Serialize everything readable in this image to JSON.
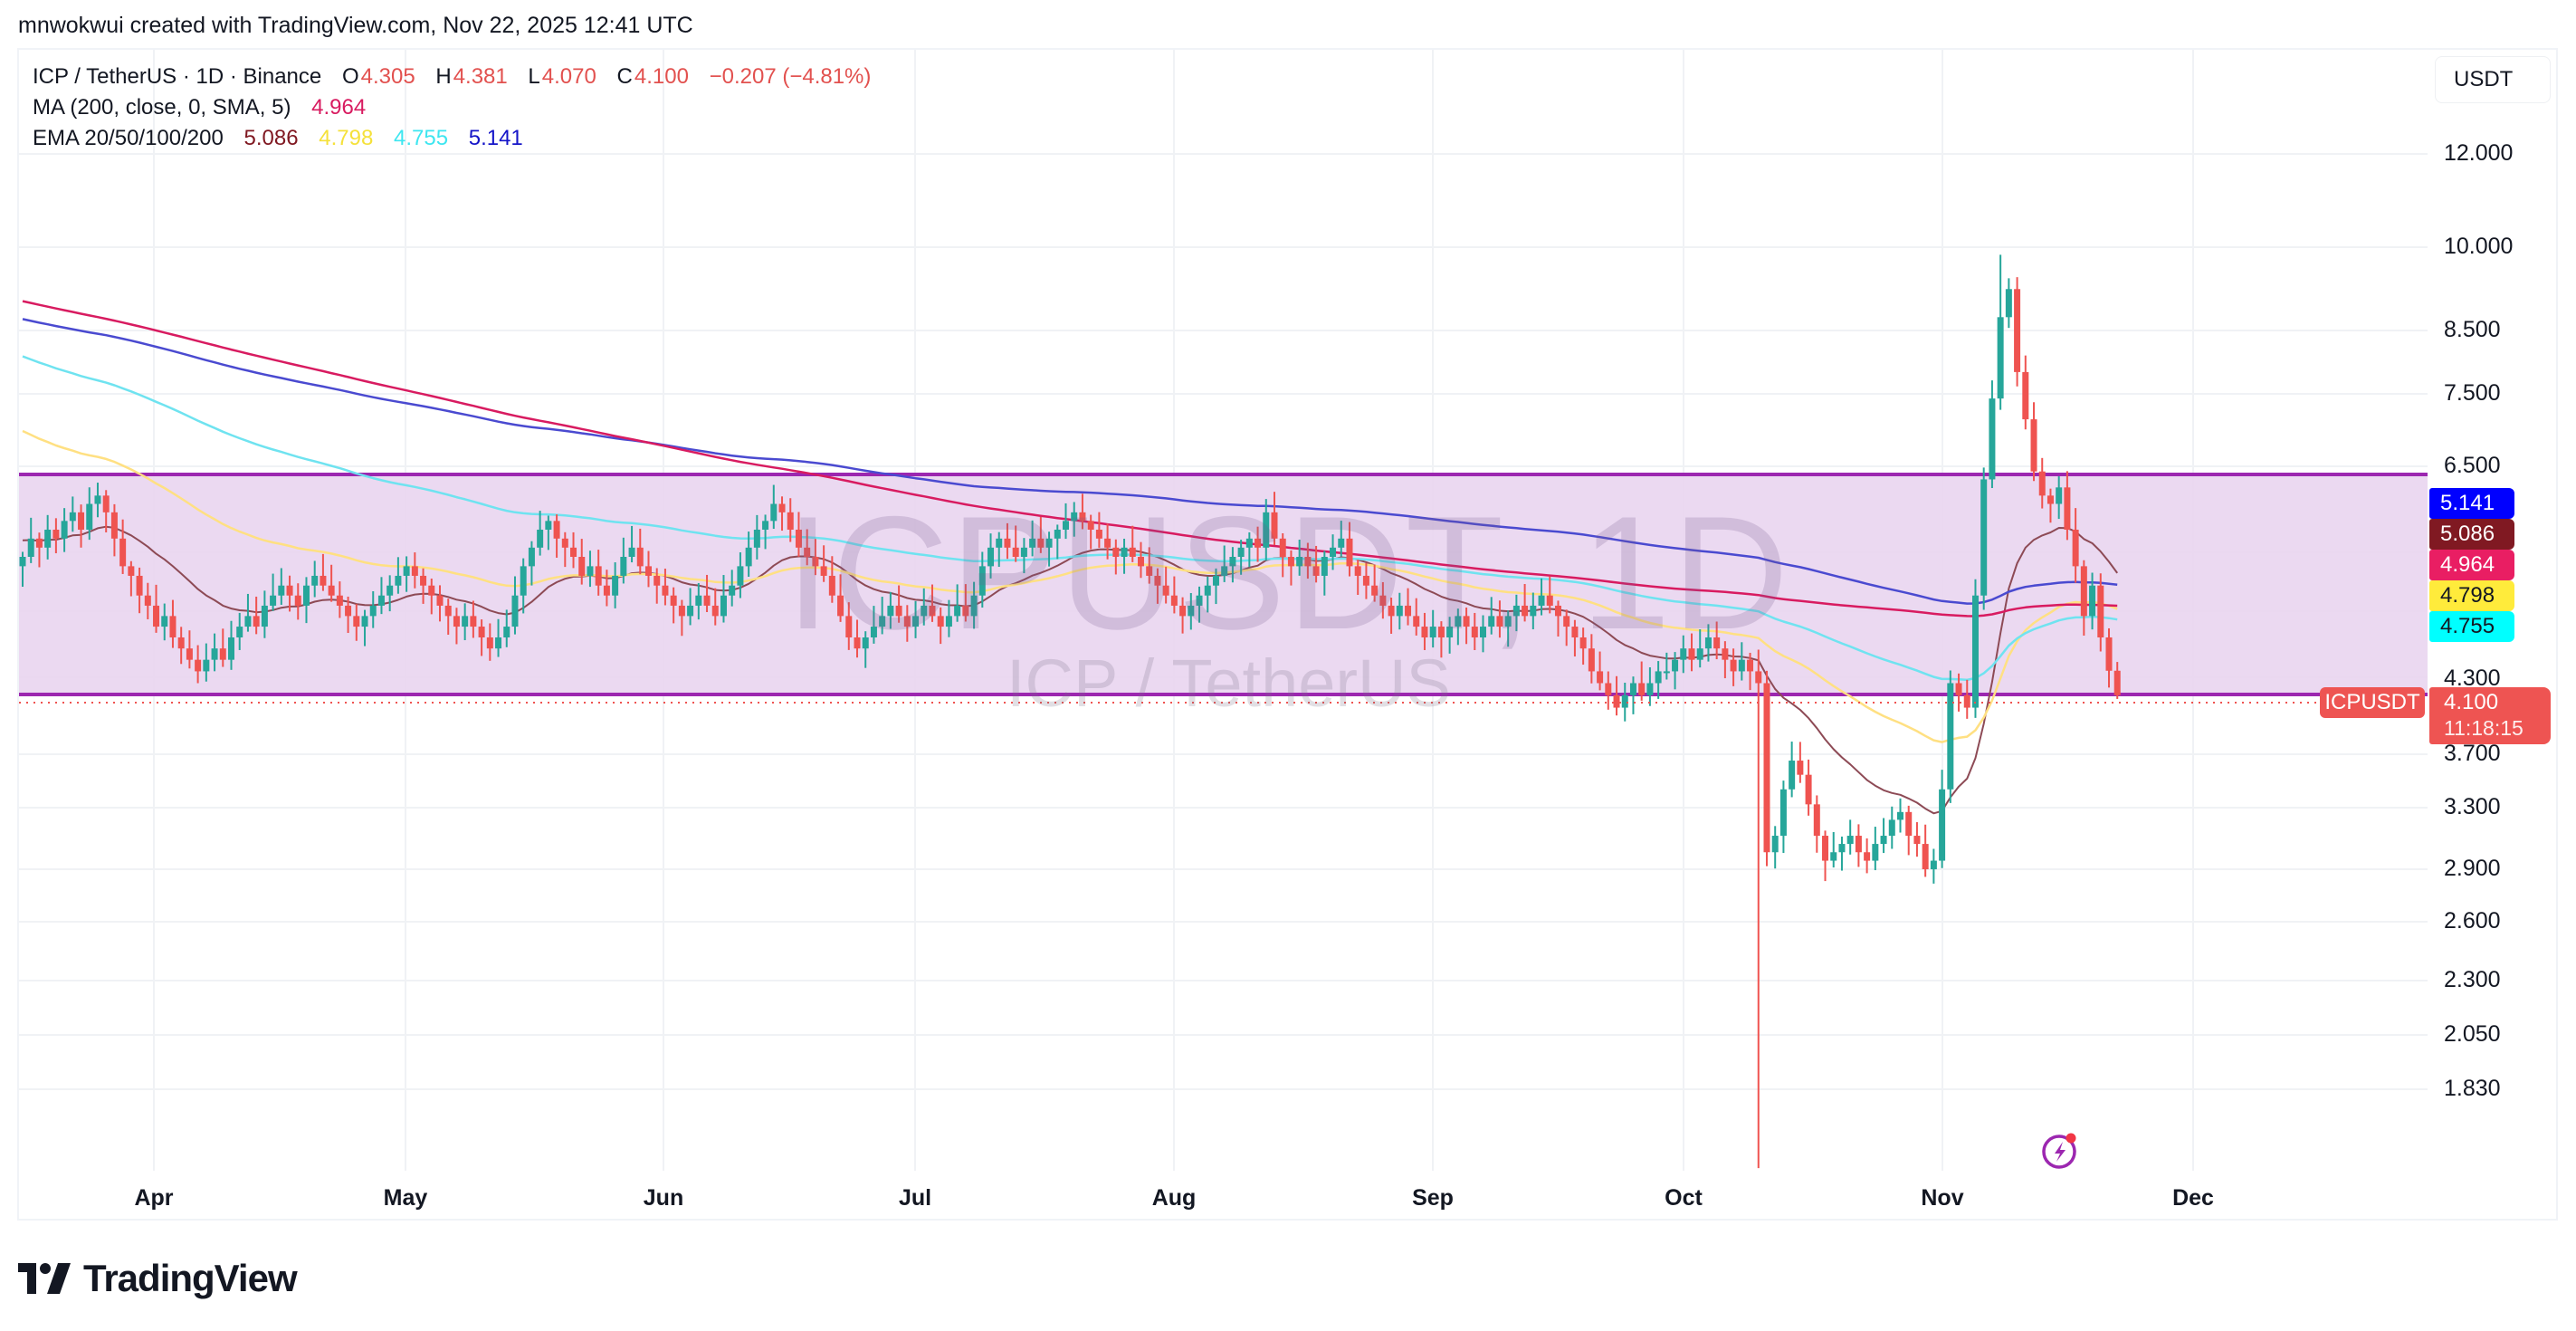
{
  "header": {
    "credit": "mnwokwui created with TradingView.com, Nov 22, 2025 12:41 UTC"
  },
  "legend": {
    "symbol_line": "ICP / TetherUS · 1D · Binance",
    "o_key": "O",
    "o_val": "4.305",
    "h_key": "H",
    "h_val": "4.381",
    "l_key": "L",
    "l_val": "4.070",
    "c_key": "C",
    "c_val": "4.100",
    "change": "−0.207 (−4.81%)",
    "ma_label": "MA (200, close, 0, SMA, 5)",
    "ma_val": "4.964",
    "ema_label": "EMA 20/50/100/200",
    "ema20_val": "5.086",
    "ema50_val": "4.798",
    "ema100_val": "4.755",
    "ema200_val": "5.141"
  },
  "currency_button": "USDT",
  "watermark": {
    "main": "ICPUSDT, 1D",
    "sub": "ICP / TetherUS"
  },
  "price_axis": {
    "ticks": [
      "12.000",
      "10.000",
      "8.500",
      "7.500",
      "6.500",
      "4.300",
      "3.700",
      "3.300",
      "2.900",
      "2.600",
      "2.300",
      "2.050",
      "1.830"
    ]
  },
  "price_tags": [
    {
      "label": "5.141",
      "bg": "#0000ff",
      "fg": "#ffffff",
      "name": "ema200-price-tag"
    },
    {
      "label": "5.086",
      "bg": "#801922",
      "fg": "#ffffff",
      "name": "ema20-price-tag"
    },
    {
      "label": "4.964",
      "bg": "#e91e63",
      "fg": "#ffffff",
      "name": "ma200-price-tag"
    },
    {
      "label": "4.798",
      "bg": "#ffeb3b",
      "fg": "#131722",
      "name": "ema50-price-tag"
    },
    {
      "label": "4.755",
      "bg": "#00ffff",
      "fg": "#131722",
      "name": "ema100-price-tag"
    }
  ],
  "last_price": {
    "symbol": "ICPUSDT",
    "price": "4.100",
    "countdown": "11:18:15"
  },
  "time_axis": {
    "labels": [
      "Apr",
      "May",
      "Jun",
      "Jul",
      "Aug",
      "Sep",
      "Oct",
      "Nov",
      "Dec"
    ]
  },
  "brand": {
    "name": "TradingView"
  },
  "colors": {
    "up": "#26a69a",
    "down": "#ef5350",
    "ema20": "#8d4a55",
    "ema50": "#ffe082",
    "ema100": "#6fe3f0",
    "ema200": "#4a4ad0",
    "ma200": "#d81b60",
    "range_fill": "#e9d5ef",
    "range_border": "#9c27b0"
  },
  "chart_data": {
    "type": "candlestick",
    "title": "ICP / TetherUS · 1D · Binance",
    "xlabel": "",
    "ylabel": "USDT",
    "y_scale": "log",
    "ylim": [
      1.6,
      13.5
    ],
    "start_date": "2025-03-16",
    "end_date": "2025-11-22",
    "x_ticks": [
      "Apr",
      "May",
      "Jun",
      "Jul",
      "Aug",
      "Sep",
      "Oct",
      "Nov",
      "Dec"
    ],
    "y_ticks": [
      12.0,
      10.0,
      8.5,
      7.5,
      6.5,
      4.3,
      3.7,
      3.3,
      2.9,
      2.6,
      2.3,
      2.05,
      1.83
    ],
    "last_bar": {
      "open": 4.305,
      "high": 4.381,
      "low": 4.07,
      "close": 4.1,
      "change": -0.207,
      "change_pct": -4.81
    },
    "indicators": {
      "MA200_SMA": 4.964,
      "EMA20": 5.086,
      "EMA50": 4.798,
      "EMA100": 4.755,
      "EMA200": 5.141
    },
    "range_box": {
      "top": 6.45,
      "bottom": 4.16,
      "color": "#9c27b0"
    },
    "closes": [
      5.4,
      5.6,
      5.5,
      5.7,
      5.6,
      5.8,
      5.9,
      5.7,
      6.0,
      6.1,
      5.9,
      5.6,
      5.3,
      5.2,
      5.0,
      4.9,
      4.7,
      4.8,
      4.6,
      4.5,
      4.4,
      4.3,
      4.4,
      4.5,
      4.4,
      4.6,
      4.7,
      4.8,
      4.7,
      4.9,
      5.0,
      5.1,
      5.0,
      4.9,
      5.1,
      5.2,
      5.1,
      5.0,
      4.9,
      4.8,
      4.7,
      4.8,
      4.9,
      5.0,
      5.1,
      5.2,
      5.3,
      5.2,
      5.1,
      5.0,
      4.9,
      4.8,
      4.7,
      4.8,
      4.7,
      4.6,
      4.5,
      4.6,
      4.7,
      5.0,
      5.3,
      5.5,
      5.7,
      5.8,
      5.6,
      5.5,
      5.4,
      5.2,
      5.3,
      5.1,
      5.0,
      5.2,
      5.4,
      5.5,
      5.3,
      5.2,
      5.1,
      5.0,
      4.9,
      4.8,
      4.9,
      5.0,
      4.9,
      4.8,
      5.0,
      5.1,
      5.3,
      5.5,
      5.7,
      5.8,
      6.0,
      5.9,
      5.7,
      5.5,
      5.4,
      5.3,
      5.2,
      5.0,
      4.8,
      4.6,
      4.5,
      4.6,
      4.7,
      4.8,
      4.9,
      4.8,
      4.7,
      4.8,
      4.9,
      4.8,
      4.7,
      4.8,
      4.9,
      4.8,
      5.0,
      5.3,
      5.5,
      5.6,
      5.5,
      5.4,
      5.5,
      5.6,
      5.5,
      5.6,
      5.7,
      5.8,
      5.9,
      5.8,
      5.7,
      5.6,
      5.5,
      5.4,
      5.5,
      5.4,
      5.3,
      5.2,
      5.1,
      5.0,
      4.9,
      4.8,
      4.9,
      5.0,
      5.1,
      5.2,
      5.3,
      5.4,
      5.5,
      5.6,
      5.5,
      5.9,
      5.6,
      5.4,
      5.3,
      5.4,
      5.3,
      5.2,
      5.4,
      5.5,
      5.6,
      5.3,
      5.2,
      5.1,
      5.0,
      4.9,
      4.8,
      4.9,
      4.8,
      4.7,
      4.6,
      4.7,
      4.6,
      4.7,
      4.8,
      4.7,
      4.6,
      4.7,
      4.8,
      4.7,
      4.8,
      4.9,
      4.8,
      4.9,
      5.0,
      4.9,
      4.8,
      4.7,
      4.6,
      4.5,
      4.3,
      4.2,
      4.1,
      4.0,
      4.1,
      4.2,
      4.1,
      4.2,
      4.3,
      4.3,
      4.4,
      4.5,
      4.4,
      4.5,
      4.6,
      4.5,
      4.4,
      4.3,
      4.4,
      4.3,
      4.2,
      3.0,
      3.1,
      3.4,
      3.6,
      3.5,
      3.3,
      3.1,
      2.95,
      3.0,
      3.05,
      3.1,
      3.0,
      2.95,
      3.05,
      3.1,
      3.2,
      3.25,
      3.1,
      3.05,
      2.9,
      2.95,
      3.4,
      4.2,
      4.1,
      4.0,
      5.0,
      6.3,
      7.4,
      8.7,
      9.2,
      7.8,
      7.1,
      6.4,
      6.1,
      6.0,
      6.2,
      5.7,
      5.3,
      4.8,
      5.1,
      4.6,
      4.305,
      4.1
    ],
    "notable_wicks": [
      {
        "date": "2025-10-10",
        "low": 1.6
      },
      {
        "date": "2025-11-08",
        "high": 9.85
      },
      {
        "date": "2025-11-09",
        "high": 9.4
      },
      {
        "date": "2025-11-17",
        "high": 5.95
      }
    ]
  }
}
